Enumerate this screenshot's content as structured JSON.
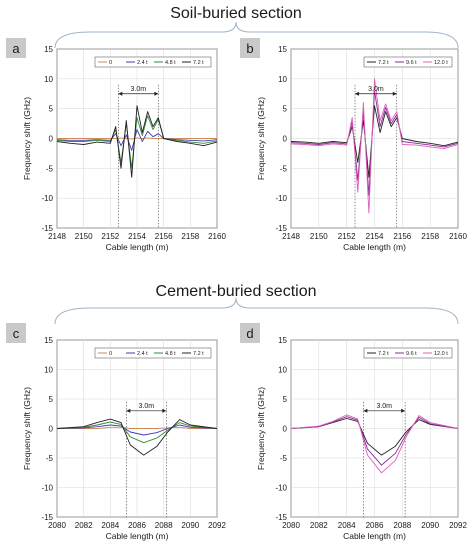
{
  "sections": [
    {
      "title": "Soil-buried section"
    },
    {
      "title": "Cement-buried section"
    }
  ],
  "colors": {
    "series_0": "#d08a5a",
    "series_2_4": "#3d3db8",
    "series_4_8": "#3a8a3a",
    "series_7_2": "#222222",
    "series_9_6": "#8a2a9a",
    "series_12_0": "#e060b8",
    "brace": "#a0b4c8"
  },
  "chart_data": [
    {
      "panel": "a",
      "type": "line",
      "xlabel": "Cable length (m)",
      "ylabel": "Frequency shift (GHz)",
      "xlim": [
        2148,
        2160
      ],
      "ylim": [
        -15,
        15
      ],
      "xticks": [
        "2148",
        "2150",
        "2152",
        "2154",
        "2156",
        "2158",
        "2160"
      ],
      "yticks": [
        "-15",
        "-10",
        "-5",
        "0",
        "5",
        "10",
        "15"
      ],
      "grid": true,
      "legend_position": "top-right",
      "annotation": {
        "text": "3.0m",
        "x_start": 2152.6,
        "x_end": 2155.6,
        "y": 7.5
      },
      "vlines": [
        2152.6,
        2155.6
      ],
      "series": [
        {
          "name": "0",
          "color": "#d08a5a",
          "x": [
            2148,
            2149,
            2150,
            2151,
            2152,
            2152.4,
            2152.8,
            2153.2,
            2153.6,
            2154,
            2154.4,
            2154.8,
            2155.2,
            2155.6,
            2156,
            2157,
            2158,
            2159,
            2160
          ],
          "y": [
            0,
            0,
            0,
            0,
            0,
            0,
            0.1,
            0,
            -0.1,
            0.1,
            0,
            0.1,
            0,
            0,
            0,
            0,
            0,
            0,
            0
          ]
        },
        {
          "name": "2.4 t",
          "color": "#3d3db8",
          "x": [
            2148,
            2149,
            2150,
            2151,
            2152,
            2152.4,
            2152.8,
            2153.2,
            2153.6,
            2154,
            2154.4,
            2154.8,
            2155.2,
            2155.6,
            2156,
            2157,
            2158,
            2159,
            2160
          ],
          "y": [
            -0.2,
            -0.3,
            -0.3,
            -0.2,
            -0.3,
            0.8,
            -1.2,
            0.6,
            -2,
            1.5,
            -0.5,
            1.2,
            0.3,
            0.8,
            0,
            -0.2,
            -0.3,
            -0.4,
            -0.2
          ]
        },
        {
          "name": "4.8 t",
          "color": "#3a8a3a",
          "x": [
            2148,
            2149,
            2150,
            2151,
            2152,
            2152.4,
            2152.8,
            2153.2,
            2153.6,
            2154,
            2154.4,
            2154.8,
            2155.2,
            2155.6,
            2156,
            2157,
            2158,
            2159,
            2160
          ],
          "y": [
            -0.3,
            -0.5,
            -0.5,
            -0.3,
            -0.5,
            1.5,
            -4,
            2.5,
            -5,
            3.5,
            0.5,
            3.8,
            1.5,
            3.2,
            0,
            -0.3,
            -0.6,
            -0.8,
            -0.4
          ]
        },
        {
          "name": "7.2 t",
          "color": "#222222",
          "x": [
            2148,
            2149,
            2150,
            2151,
            2152,
            2152.4,
            2152.8,
            2153.2,
            2153.6,
            2154,
            2154.4,
            2154.8,
            2155.2,
            2155.6,
            2156,
            2157,
            2158,
            2159,
            2160
          ],
          "y": [
            -0.5,
            -0.8,
            -1,
            -0.6,
            -0.8,
            2,
            -5,
            3,
            -6.5,
            5.5,
            1,
            4.5,
            2,
            3.5,
            0,
            -0.5,
            -0.8,
            -1.2,
            -0.6
          ]
        }
      ]
    },
    {
      "panel": "b",
      "type": "line",
      "xlabel": "Cable length (m)",
      "ylabel": "Frequency shift (GHz)",
      "xlim": [
        2148,
        2160
      ],
      "ylim": [
        -15,
        15
      ],
      "xticks": [
        "2148",
        "2150",
        "2152",
        "2154",
        "2156",
        "2158",
        "2160"
      ],
      "yticks": [
        "-15",
        "-10",
        "-5",
        "0",
        "5",
        "10",
        "15"
      ],
      "grid": true,
      "legend_position": "top-right",
      "annotation": {
        "text": "3.0m",
        "x_start": 2152.6,
        "x_end": 2155.6,
        "y": 7.5
      },
      "vlines": [
        2152.6,
        2155.6
      ],
      "series": [
        {
          "name": "7.2 t",
          "color": "#222222",
          "x": [
            2148,
            2149,
            2150,
            2151,
            2152,
            2152.4,
            2152.8,
            2153.2,
            2153.6,
            2154,
            2154.4,
            2154.8,
            2155.2,
            2155.6,
            2156,
            2157,
            2158,
            2159,
            2160
          ],
          "y": [
            -0.5,
            -0.6,
            -0.8,
            -0.5,
            -0.7,
            2,
            -4,
            3,
            -6.5,
            5.5,
            1,
            4.5,
            2,
            3.5,
            0,
            -0.5,
            -0.8,
            -1.2,
            -0.6
          ]
        },
        {
          "name": "9.6 t",
          "color": "#8a2a9a",
          "x": [
            2148,
            2149,
            2150,
            2151,
            2152,
            2152.4,
            2152.8,
            2153.2,
            2153.6,
            2154,
            2154.4,
            2154.8,
            2155.2,
            2155.6,
            2156,
            2157,
            2158,
            2159,
            2160
          ],
          "y": [
            -0.7,
            -0.8,
            -1,
            -0.7,
            -0.9,
            2.8,
            -7,
            4.5,
            -9.5,
            8,
            2,
            5.2,
            2.5,
            4,
            -0.5,
            -0.8,
            -1.1,
            -1.4,
            -0.8
          ]
        },
        {
          "name": "12.0 t",
          "color": "#e060b8",
          "x": [
            2148,
            2149,
            2150,
            2151,
            2152,
            2152.4,
            2152.8,
            2153.2,
            2153.6,
            2154,
            2154.4,
            2154.8,
            2155.2,
            2155.6,
            2156,
            2157,
            2158,
            2159,
            2160
          ],
          "y": [
            -0.9,
            -1,
            -1.2,
            -0.9,
            -1.1,
            3.5,
            -9,
            6,
            -12.5,
            10,
            3,
            5.8,
            3,
            4.5,
            -1,
            -1.1,
            -1.4,
            -1.7,
            -1
          ]
        }
      ]
    },
    {
      "panel": "c",
      "type": "line",
      "xlabel": "Cable length (m)",
      "ylabel": "Frequency shift (GHz)",
      "xlim": [
        2080,
        2092
      ],
      "ylim": [
        -15,
        15
      ],
      "xticks": [
        "2080",
        "2082",
        "2084",
        "2086",
        "2088",
        "2090",
        "2092"
      ],
      "yticks": [
        "-15",
        "-10",
        "-5",
        "0",
        "5",
        "10",
        "15"
      ],
      "grid": true,
      "legend_position": "top-right",
      "annotation": {
        "text": "3.0m",
        "x_start": 2085.2,
        "x_end": 2088.2,
        "y": 3
      },
      "vlines": [
        2085.2,
        2088.2
      ],
      "series": [
        {
          "name": "0",
          "color": "#d08a5a",
          "x": [
            2080,
            2082,
            2083,
            2084,
            2084.8,
            2085.5,
            2086.5,
            2087.5,
            2088.3,
            2089.2,
            2090,
            2092
          ],
          "y": [
            0,
            0,
            0,
            0.2,
            0.2,
            0,
            0,
            0,
            0.1,
            0.2,
            0,
            0
          ]
        },
        {
          "name": "2.4 t",
          "color": "#3d3db8",
          "x": [
            2080,
            2082,
            2083,
            2084,
            2084.8,
            2085.5,
            2086.5,
            2087.5,
            2088.3,
            2089.2,
            2090,
            2092
          ],
          "y": [
            0,
            0.1,
            0.3,
            0.6,
            0.4,
            -0.6,
            -1.1,
            -0.7,
            0,
            0.6,
            0.2,
            0
          ]
        },
        {
          "name": "4.8 t",
          "color": "#3a8a3a",
          "x": [
            2080,
            2082,
            2083,
            2084,
            2084.8,
            2085.5,
            2086.5,
            2087.5,
            2088.3,
            2089.2,
            2090,
            2092
          ],
          "y": [
            0,
            0.2,
            0.6,
            1.1,
            0.7,
            -1.4,
            -2.4,
            -1.6,
            -0.3,
            1,
            0.4,
            0
          ]
        },
        {
          "name": "7.2 t",
          "color": "#222222",
          "x": [
            2080,
            2082,
            2083,
            2084,
            2084.8,
            2085.5,
            2086.5,
            2087.5,
            2088.3,
            2089.2,
            2090,
            2092
          ],
          "y": [
            0,
            0.3,
            1,
            1.6,
            1,
            -2.8,
            -4.5,
            -3,
            -0.6,
            1.5,
            0.6,
            0
          ]
        }
      ]
    },
    {
      "panel": "d",
      "type": "line",
      "xlabel": "Cable length (m)",
      "ylabel": "Frequency shift (GHz)",
      "xlim": [
        2080,
        2092
      ],
      "ylim": [
        -15,
        15
      ],
      "xticks": [
        "2080",
        "2082",
        "2084",
        "2086",
        "2088",
        "2090",
        "2092"
      ],
      "yticks": [
        "-15",
        "-10",
        "-5",
        "0",
        "5",
        "10",
        "15"
      ],
      "grid": true,
      "legend_position": "top-right",
      "annotation": {
        "text": "3.0m",
        "x_start": 2085.2,
        "x_end": 2088.2,
        "y": 3
      },
      "vlines": [
        2085.2,
        2088.2
      ],
      "series": [
        {
          "name": "7.2 t",
          "color": "#222222",
          "x": [
            2080,
            2082,
            2083,
            2084,
            2084.8,
            2085.5,
            2086.5,
            2087.5,
            2088.3,
            2089.2,
            2090,
            2092
          ],
          "y": [
            0,
            0.3,
            1,
            1.7,
            1.2,
            -2.5,
            -4.5,
            -3,
            -0.5,
            1.5,
            0.7,
            0
          ]
        },
        {
          "name": "9.6 t",
          "color": "#8a2a9a",
          "x": [
            2080,
            2082,
            2083,
            2084,
            2084.8,
            2085.5,
            2086.5,
            2087.5,
            2088.3,
            2089.2,
            2090,
            2092
          ],
          "y": [
            0,
            0.3,
            1.1,
            2,
            1.4,
            -3.5,
            -6.2,
            -4.2,
            -0.9,
            1.9,
            0.8,
            0
          ]
        },
        {
          "name": "12.0 t",
          "color": "#e060b8",
          "x": [
            2080,
            2082,
            2083,
            2084,
            2084.8,
            2085.5,
            2086.5,
            2087.5,
            2088.3,
            2089.2,
            2090,
            2092
          ],
          "y": [
            0,
            0.4,
            1.2,
            2.3,
            1.6,
            -4.5,
            -7.5,
            -5.4,
            -1.3,
            2.2,
            1,
            0
          ]
        }
      ]
    }
  ]
}
